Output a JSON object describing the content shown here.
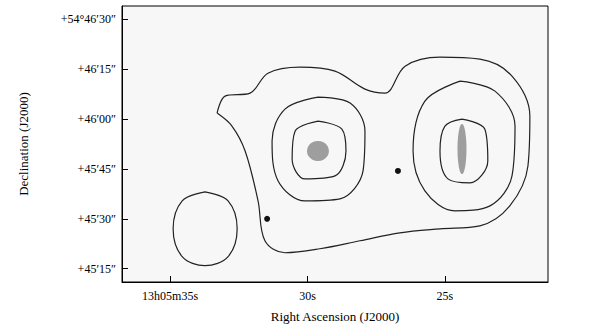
{
  "chart_data": {
    "type": "contour",
    "x_label": "Right Ascension (J2000)",
    "y_label": "Declination (J2000)",
    "xlim": [
      36.75,
      21.25
    ],
    "ylim": [
      11,
      94
    ],
    "xticks": [
      {
        "value": 35,
        "label": "13h05m35s"
      },
      {
        "value": 30,
        "label": "30s"
      },
      {
        "value": 25,
        "label": "25s"
      }
    ],
    "yticks": [
      {
        "value": 90,
        "label": "+54°46′30″"
      },
      {
        "value": 75,
        "label": "+46′15″"
      },
      {
        "value": 60,
        "label": "+46′00″"
      },
      {
        "value": 45,
        "label": "+45′45″"
      },
      {
        "value": 30,
        "label": "+45′30″"
      },
      {
        "value": 15,
        "label": "+45′15″"
      }
    ],
    "grid": false,
    "series": [
      {
        "type": "line",
        "color": "#222222",
        "values": [
          [
            33.29,
            61.8
          ],
          [
            33.0,
            66.9
          ],
          [
            32.09,
            67.8
          ],
          [
            31.44,
            73.8
          ],
          [
            30.27,
            75.6
          ],
          [
            29.0,
            74.4
          ],
          [
            27.91,
            69.0
          ],
          [
            27.18,
            67.8
          ],
          [
            26.45,
            75.9
          ],
          [
            25.18,
            78.6
          ],
          [
            23.73,
            78.0
          ],
          [
            22.56,
            72.9
          ],
          [
            21.91,
            60.9
          ],
          [
            21.98,
            45.9
          ],
          [
            22.64,
            33.9
          ],
          [
            23.73,
            27.9
          ],
          [
            25.18,
            27.0
          ],
          [
            26.64,
            25.8
          ],
          [
            28.09,
            23.4
          ],
          [
            29.55,
            21.0
          ],
          [
            30.82,
            19.8
          ],
          [
            31.55,
            23.4
          ],
          [
            31.8,
            35.4
          ],
          [
            32.27,
            50.4
          ],
          [
            32.75,
            57.9
          ]
        ]
      },
      {
        "type": "line",
        "color": "#222222",
        "values": [
          [
            29.62,
            66.6
          ],
          [
            28.45,
            64.8
          ],
          [
            27.91,
            56.4
          ],
          [
            27.98,
            44.4
          ],
          [
            28.82,
            36.0
          ],
          [
            30.09,
            35.4
          ],
          [
            31.07,
            41.4
          ],
          [
            31.29,
            53.4
          ],
          [
            30.82,
            63.0
          ]
        ]
      },
      {
        "type": "line",
        "color": "#222222",
        "values": [
          [
            29.62,
            59.4
          ],
          [
            28.75,
            57.0
          ],
          [
            28.6,
            50.4
          ],
          [
            29.0,
            42.9
          ],
          [
            30.09,
            42.0
          ],
          [
            30.56,
            48.0
          ],
          [
            30.45,
            56.4
          ]
        ]
      },
      {
        "type": "line",
        "color": "#222222",
        "values": [
          [
            24.45,
            71.4
          ],
          [
            23.18,
            68.4
          ],
          [
            22.45,
            57.9
          ],
          [
            22.56,
            42.9
          ],
          [
            23.36,
            33.9
          ],
          [
            24.64,
            32.4
          ],
          [
            25.73,
            38.4
          ],
          [
            26.16,
            50.4
          ],
          [
            25.73,
            65.4
          ]
        ]
      },
      {
        "type": "line",
        "color": "#222222",
        "values": [
          [
            24.38,
            60.0
          ],
          [
            23.55,
            57.0
          ],
          [
            23.44,
            47.4
          ],
          [
            24.09,
            40.8
          ],
          [
            24.89,
            42.0
          ],
          [
            25.18,
            50.4
          ],
          [
            25.0,
            57.9
          ]
        ]
      },
      {
        "type": "line",
        "color": "#222222",
        "values": [
          [
            33.73,
            38.1
          ],
          [
            32.89,
            35.4
          ],
          [
            32.56,
            27.0
          ],
          [
            32.89,
            18.6
          ],
          [
            33.73,
            15.9
          ],
          [
            34.56,
            18.6
          ],
          [
            34.89,
            27.0
          ],
          [
            34.56,
            35.4
          ]
        ]
      },
      {
        "type": "scatter",
        "color": "#111111",
        "marker": "circle",
        "values": [
          [
            26.71,
            44.4
          ],
          [
            31.47,
            30.0
          ]
        ]
      },
      {
        "type": "scatter",
        "color": "#555555",
        "marker": "ellipse",
        "values": [
          [
            29.62,
            50.4
          ],
          [
            24.38,
            51.0
          ]
        ]
      }
    ]
  }
}
